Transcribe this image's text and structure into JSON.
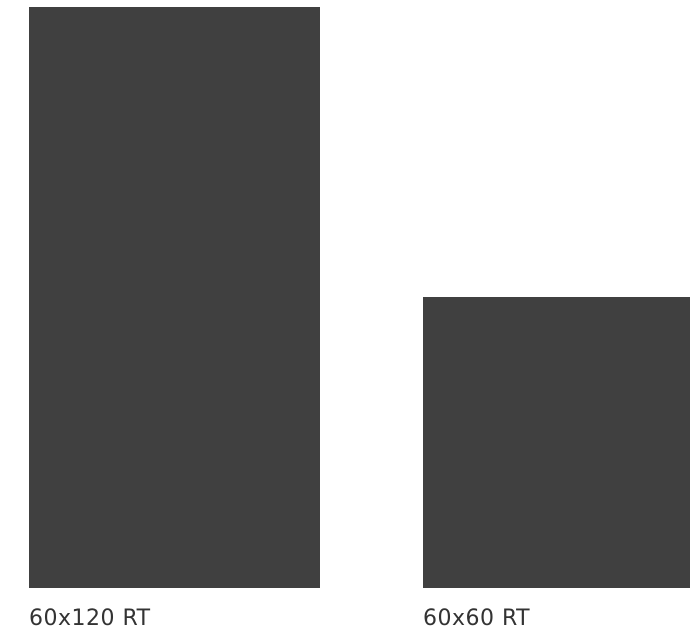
{
  "tiles": [
    {
      "label": "60x120 RT",
      "color": "#404040"
    },
    {
      "label": "60x60 RT",
      "color": "#404040"
    }
  ],
  "colors": {
    "background": "#ffffff",
    "tile": "#404040",
    "caption": "#333333"
  }
}
